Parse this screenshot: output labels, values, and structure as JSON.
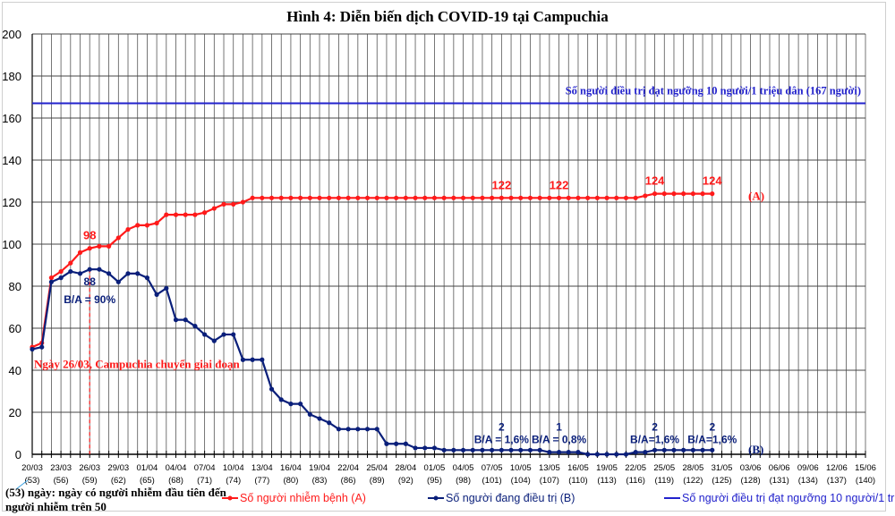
{
  "chart_data": {
    "type": "line",
    "title": "Hình 4: Diễn biến dịch COVID-19 tại Campuchia",
    "ylim": [
      0,
      200
    ],
    "yticks": [
      0,
      20,
      40,
      60,
      80,
      100,
      120,
      140,
      160,
      180,
      200
    ],
    "grid": true,
    "x_start": "20/03",
    "x_end": "15/06",
    "xtick_labels": [
      "20/03",
      "23/03",
      "26/03",
      "29/03",
      "01/04",
      "04/04",
      "07/04",
      "10/04",
      "13/04",
      "16/04",
      "19/04",
      "22/04",
      "25/04",
      "28/04",
      "01/05",
      "04/05",
      "07/05",
      "10/05",
      "13/05",
      "16/05",
      "19/05",
      "22/05",
      "25/05",
      "28/05",
      "31/05",
      "03/06",
      "06/06",
      "09/06",
      "12/06",
      "15/06"
    ],
    "xtick_sublabels": [
      "(53)",
      "(56)",
      "(59)",
      "(62)",
      "(65)",
      "(68)",
      "(71)",
      "(74)",
      "(77)",
      "(80)",
      "(83)",
      "(86)",
      "(89)",
      "(92)",
      "(95)",
      "(98)",
      "(101)",
      "(104)",
      "(107)",
      "(110)",
      "(113)",
      "(116)",
      "(119)",
      "(122)",
      "(125)",
      "(128)",
      "(131)",
      "(134)",
      "(137)",
      "(140)"
    ],
    "series": [
      {
        "name": "Số người nhiễm bệnh (A)",
        "color": "#ff1a1a",
        "start": "20/03",
        "values": [
          51,
          53,
          84,
          87,
          91,
          96,
          98,
          99,
          99,
          103,
          107,
          109,
          109,
          110,
          114,
          114,
          114,
          114,
          115,
          117,
          119,
          119,
          120,
          122,
          122,
          122,
          122,
          122,
          122,
          122,
          122,
          122,
          122,
          122,
          122,
          122,
          122,
          122,
          122,
          122,
          122,
          122,
          122,
          122,
          122,
          122,
          122,
          122,
          122,
          122,
          122,
          122,
          122,
          122,
          122,
          122,
          122,
          122,
          122,
          122,
          122,
          122,
          122,
          122,
          123,
          124,
          124,
          124,
          124,
          124,
          124,
          124
        ]
      },
      {
        "name": "Số người đang điều trị (B)",
        "color": "#0a1f7a",
        "start": "20/03",
        "values": [
          50,
          51,
          82,
          84,
          87,
          86,
          88,
          88,
          86,
          82,
          86,
          86,
          84,
          76,
          79,
          64,
          64,
          61,
          57,
          54,
          57,
          57,
          45,
          45,
          45,
          31,
          26,
          24,
          24,
          19,
          17,
          15,
          12,
          12,
          12,
          12,
          12,
          5,
          5,
          5,
          3,
          3,
          3,
          2,
          2,
          2,
          2,
          2,
          2,
          2,
          2,
          2,
          2,
          2,
          1,
          1,
          1,
          1,
          0,
          0,
          0,
          0,
          0,
          1,
          1,
          2,
          2,
          2,
          2,
          2,
          2,
          2
        ]
      },
      {
        "name": "Số người điều trị đạt ngưỡng 10 người/1 triệu dân",
        "color": "#2222cc",
        "constant": 167
      }
    ],
    "annotations": {
      "threshold_label": "Số người điều trị đạt ngưỡng 10 người/1 triệu dân (167 người)",
      "phase_line_date": "26/03",
      "phase_label": "Ngày 26/03, Campuchia chuyển giai đoạn",
      "series_a_label": "(A)",
      "series_b_label": "(B)",
      "a_points": [
        {
          "date": "26/03",
          "text": "98"
        },
        {
          "date": "08/05",
          "text": "122"
        },
        {
          "date": "14/05",
          "text": "122"
        },
        {
          "date": "24/05",
          "text": "124"
        },
        {
          "date": "30/05",
          "text": "124"
        }
      ],
      "b_points": [
        {
          "date": "26/03",
          "value": "88",
          "ratio": "B/A = 90%"
        },
        {
          "date": "08/05",
          "value": "2",
          "ratio": "B/A = 1,6%"
        },
        {
          "date": "14/05",
          "value": "1",
          "ratio": "B/A = 0,8%"
        },
        {
          "date": "24/05",
          "value": "2",
          "ratio": "B/A=1,6%"
        },
        {
          "date": "30/05",
          "value": "2",
          "ratio": "B/A=1,6%"
        }
      ]
    },
    "legend_position": "bottom",
    "footnote_line1": "(53) ngày: ngày có người nhiễm đầu tiên đến",
    "footnote_line2": "người nhiễm trên 50"
  }
}
